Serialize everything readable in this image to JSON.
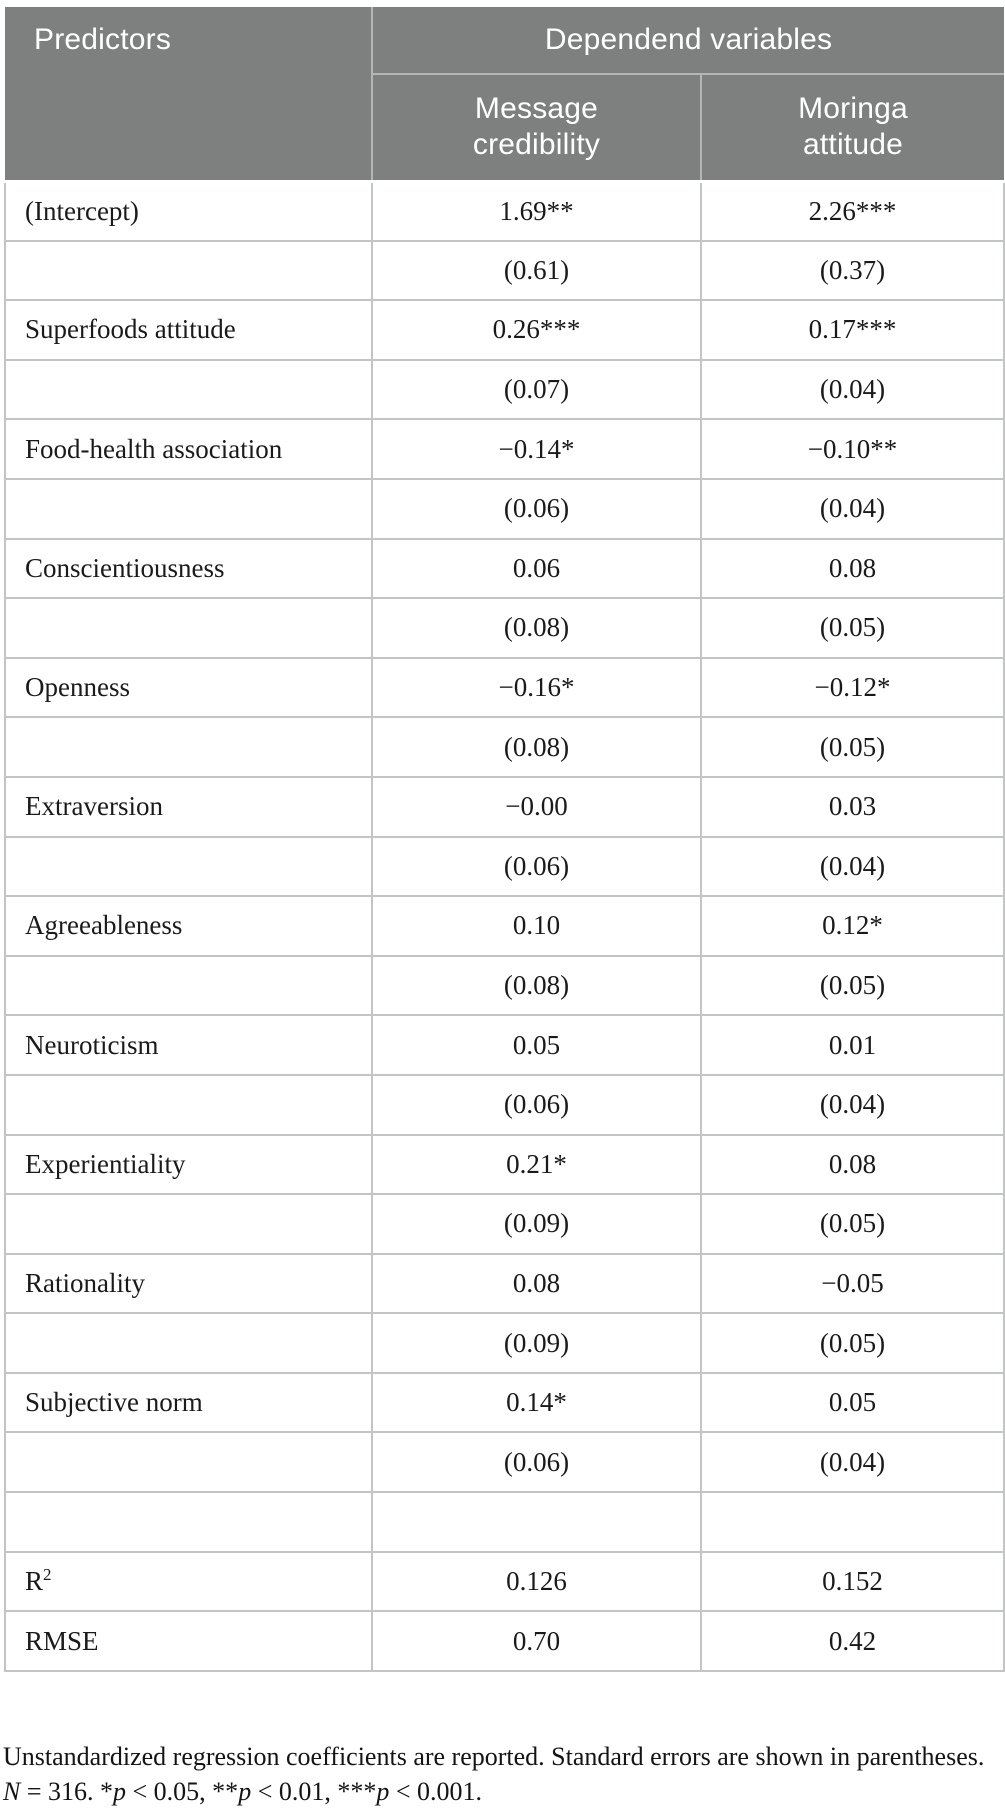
{
  "header": {
    "predictors": "Predictors",
    "dependent_variables": "Dependend variables",
    "message_credibility": "Message credibility",
    "moringa_attitude": "Moringa attitude"
  },
  "rows": [
    {
      "label": "(Intercept)",
      "mc": "1.69**",
      "ma": "2.26***"
    },
    {
      "label": "",
      "mc": "(0.61)",
      "ma": "(0.37)"
    },
    {
      "label": "Superfoods attitude",
      "mc": "0.26***",
      "ma": "0.17***"
    },
    {
      "label": "",
      "mc": "(0.07)",
      "ma": "(0.04)"
    },
    {
      "label": "Food-health association",
      "mc": "−0.14*",
      "ma": "−0.10**"
    },
    {
      "label": "",
      "mc": "(0.06)",
      "ma": "(0.04)"
    },
    {
      "label": "Conscientiousness",
      "mc": "0.06",
      "ma": "0.08"
    },
    {
      "label": "",
      "mc": "(0.08)",
      "ma": "(0.05)"
    },
    {
      "label": "Openness",
      "mc": "−0.16*",
      "ma": "−0.12*"
    },
    {
      "label": "",
      "mc": "(0.08)",
      "ma": "(0.05)"
    },
    {
      "label": "Extraversion",
      "mc": "−0.00",
      "ma": "0.03"
    },
    {
      "label": "",
      "mc": "(0.06)",
      "ma": "(0.04)"
    },
    {
      "label": "Agreeableness",
      "mc": "0.10",
      "ma": "0.12*"
    },
    {
      "label": "",
      "mc": "(0.08)",
      "ma": "(0.05)"
    },
    {
      "label": "Neuroticism",
      "mc": "0.05",
      "ma": "0.01"
    },
    {
      "label": "",
      "mc": "(0.06)",
      "ma": "(0.04)"
    },
    {
      "label": "Experientiality",
      "mc": "0.21*",
      "ma": "0.08"
    },
    {
      "label": "",
      "mc": "(0.09)",
      "ma": "(0.05)"
    },
    {
      "label": "Rationality",
      "mc": "0.08",
      "ma": "−0.05"
    },
    {
      "label": "",
      "mc": "(0.09)",
      "ma": "(0.05)"
    },
    {
      "label": "Subjective norm",
      "mc": "0.14*",
      "ma": "0.05"
    },
    {
      "label": "",
      "mc": "(0.06)",
      "ma": "(0.04)"
    },
    {
      "label": "",
      "mc": "",
      "ma": ""
    },
    {
      "label": "R",
      "label_sup": "2",
      "mc": "0.126",
      "ma": "0.152"
    },
    {
      "label": "RMSE",
      "mc": "0.70",
      "ma": "0.42"
    }
  ],
  "footnote": {
    "part1": "Unstandardized regression coefficients are reported. Standard errors are shown in parentheses. ",
    "n": "N",
    "part2": " = 316. *",
    "p1": "p",
    "part3": " < 0.05, **",
    "p2": "p",
    "part4": " < 0.01, ***",
    "p3": "p",
    "part5": " < 0.001."
  },
  "colors": {
    "header_bg": "#7e8080",
    "header_divider": "#b4b6b6",
    "grid_line": "#c3c5c5",
    "header_text": "#ffffff",
    "body_text": "#1a1a1a"
  }
}
